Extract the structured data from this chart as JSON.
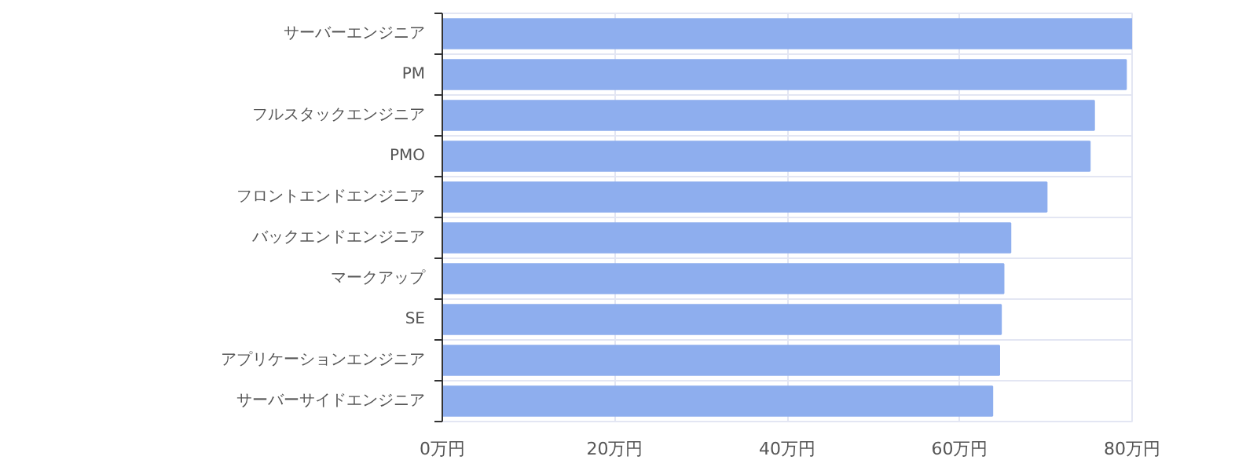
{
  "chart_data": {
    "type": "bar",
    "orientation": "horizontal",
    "categories": [
      "サーバーエンジニア",
      "PM",
      "フルスタックエンジニア",
      "PMO",
      "フロントエンドエンジニア",
      "バックエンドエンジニア",
      "マークアップ",
      "SE",
      "アプリケーションエンジニア",
      "サーバーサイドエンジニア"
    ],
    "values": [
      80,
      79.3,
      75.6,
      75.1,
      70.1,
      65.9,
      65.1,
      64.8,
      64.6,
      63.8
    ],
    "color": "#8eaeee",
    "xlim": [
      0,
      80
    ],
    "xticks": [
      {
        "value": 0,
        "label": "0万円"
      },
      {
        "value": 20,
        "label": "20万円"
      },
      {
        "value": 40,
        "label": "40万円"
      },
      {
        "value": 60,
        "label": "60万円"
      },
      {
        "value": 80,
        "label": "80万円"
      }
    ],
    "grid": true
  }
}
